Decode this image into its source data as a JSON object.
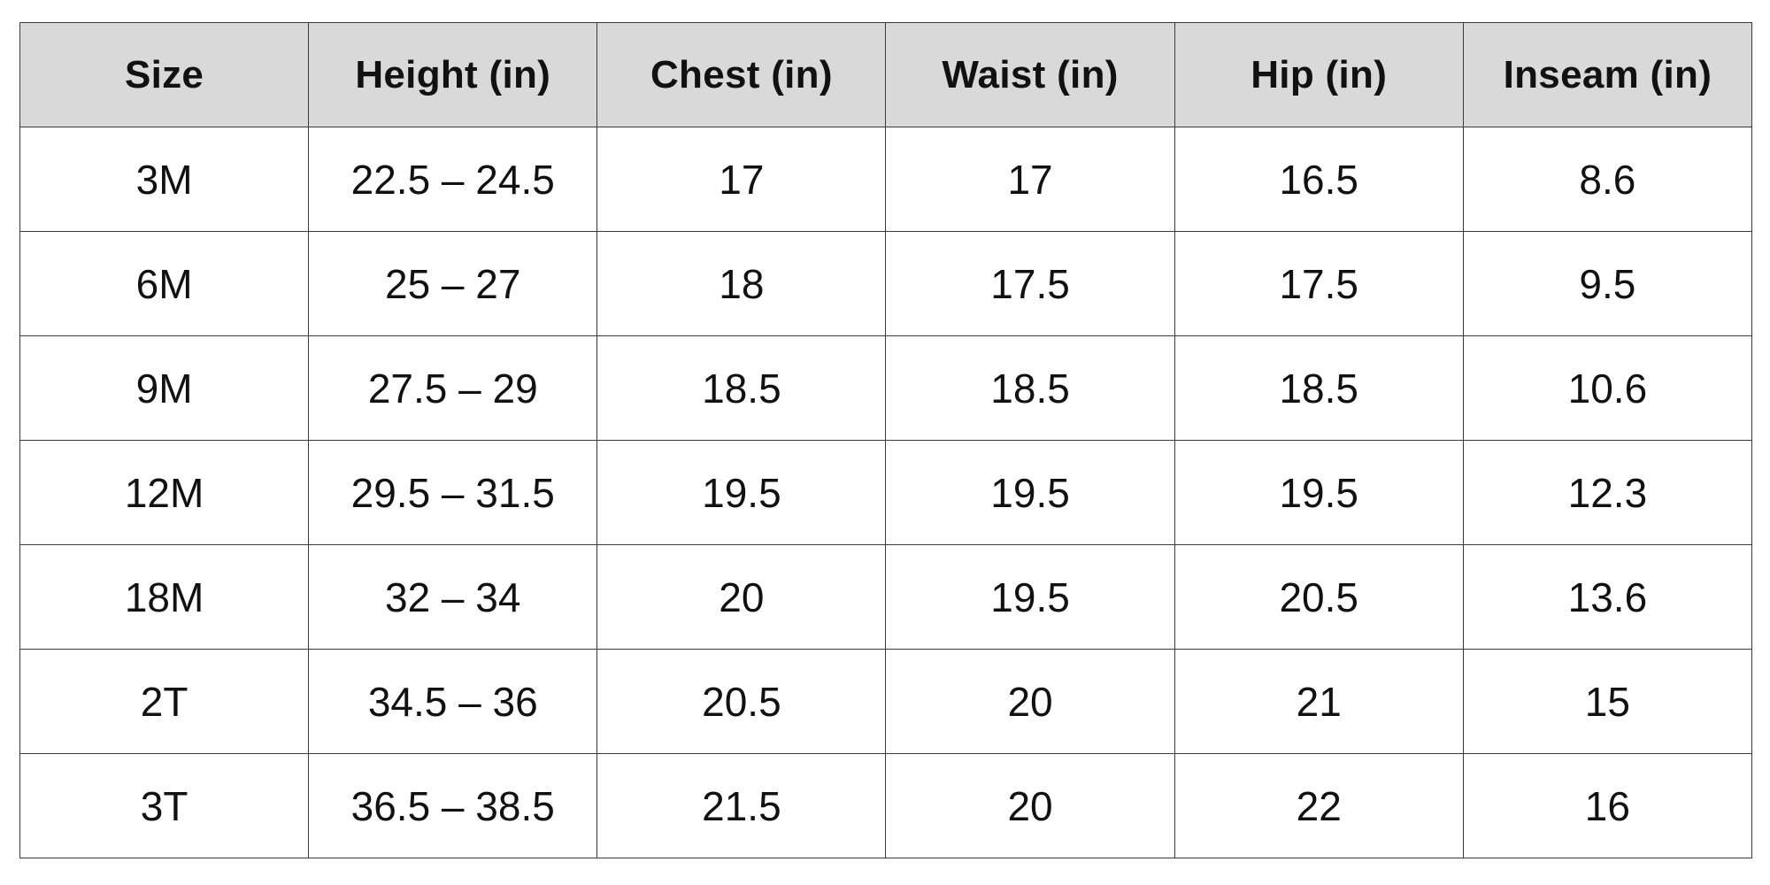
{
  "table": {
    "headers": [
      "Size",
      "Height (in)",
      "Chest (in)",
      "Waist (in)",
      "Hip (in)",
      "Inseam (in)"
    ],
    "rows": [
      [
        "3M",
        "22.5 – 24.5",
        "17",
        "17",
        "16.5",
        "8.6"
      ],
      [
        "6M",
        "25 – 27",
        "18",
        "17.5",
        "17.5",
        "9.5"
      ],
      [
        "9M",
        "27.5 – 29",
        "18.5",
        "18.5",
        "18.5",
        "10.6"
      ],
      [
        "12M",
        "29.5 – 31.5",
        "19.5",
        "19.5",
        "19.5",
        "12.3"
      ],
      [
        "18M",
        "32 – 34",
        "20",
        "19.5",
        "20.5",
        "13.6"
      ],
      [
        "2T",
        "34.5 – 36",
        "20.5",
        "20",
        "21",
        "15"
      ],
      [
        "3T",
        "36.5 – 38.5",
        "21.5",
        "20",
        "22",
        "16"
      ]
    ]
  },
  "colors": {
    "header_background": "#d9d9d9",
    "border": "#3a3a3a"
  }
}
